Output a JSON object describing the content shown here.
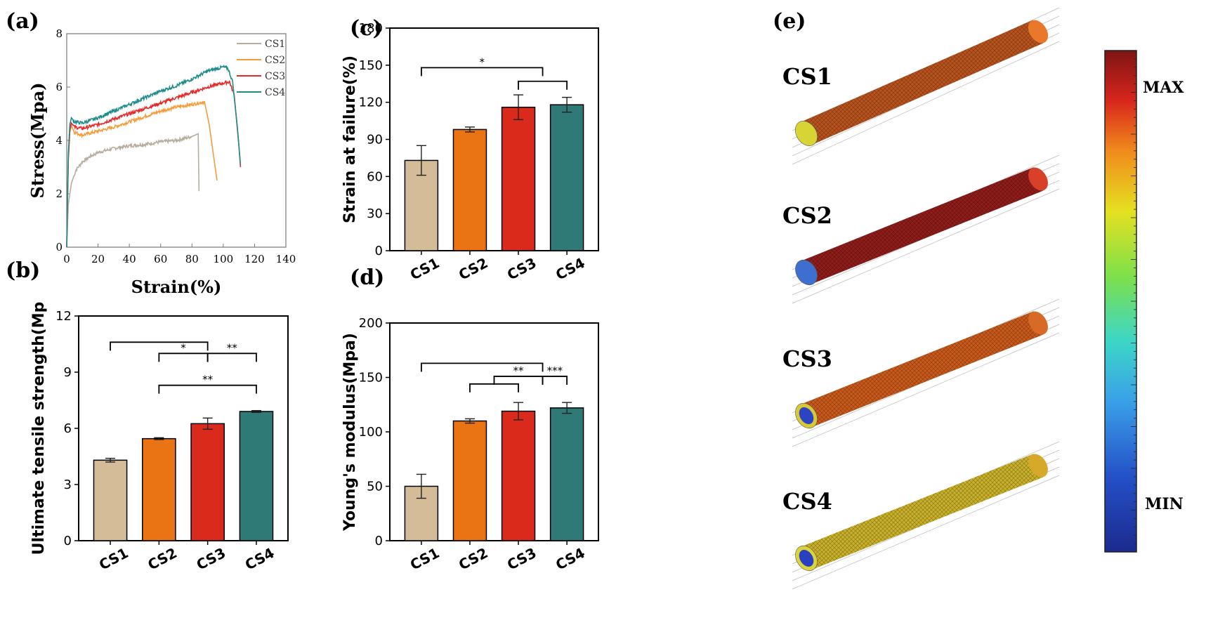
{
  "panels": {
    "a": "(a)",
    "b": "(b)",
    "c": "(c)",
    "d": "(d)",
    "e": "(e)"
  },
  "colors": {
    "CS1": "#d5bc98",
    "CS2": "#ea7414",
    "CS3": "#d92a1c",
    "CS4": "#2f7a76",
    "line_CS1": "#b7ad9f",
    "line_CS2": "#f59c3a",
    "line_CS3": "#e8292a",
    "line_CS4": "#1f8e8a"
  },
  "panel_e": {
    "models": [
      "CS1",
      "CS2",
      "CS3",
      "CS4"
    ],
    "colorbar": {
      "max_label": "MAX",
      "min_label": "MIN"
    }
  },
  "chart_data": [
    {
      "id": "a",
      "type": "line",
      "xlabel": "Strain(%)",
      "ylabel": "Stress(Mpa)",
      "xlim": [
        0,
        140
      ],
      "ylim": [
        0,
        8
      ],
      "xticks": [
        "0",
        "20",
        "40",
        "60",
        "80",
        "100",
        "120",
        "140"
      ],
      "yticks": [
        "0",
        "2",
        "4",
        "6",
        "8"
      ],
      "legend": "top-right",
      "series": [
        {
          "name": "CS1",
          "x": [
            0,
            1,
            3,
            6,
            10,
            15,
            20,
            30,
            40,
            50,
            60,
            70,
            80,
            84,
            84.5
          ],
          "y": [
            0,
            1.6,
            2.4,
            2.9,
            3.2,
            3.4,
            3.55,
            3.7,
            3.8,
            3.85,
            3.95,
            4.0,
            4.15,
            4.25,
            2.1
          ]
        },
        {
          "name": "CS2",
          "x": [
            0,
            1,
            2,
            3,
            5,
            10,
            20,
            30,
            40,
            50,
            60,
            70,
            80,
            88,
            91,
            96
          ],
          "y": [
            0,
            3.2,
            4.3,
            4.55,
            4.3,
            4.2,
            4.35,
            4.5,
            4.7,
            4.9,
            5.1,
            5.25,
            5.35,
            5.45,
            4.6,
            2.5
          ]
        },
        {
          "name": "CS3",
          "x": [
            0,
            1,
            2,
            3,
            5,
            10,
            20,
            30,
            40,
            50,
            60,
            70,
            80,
            90,
            100,
            104,
            107,
            110,
            111
          ],
          "y": [
            0,
            3.3,
            4.4,
            4.65,
            4.5,
            4.45,
            4.6,
            4.8,
            5.0,
            5.2,
            5.4,
            5.6,
            5.8,
            6.0,
            6.15,
            6.2,
            5.7,
            3.8,
            3.0
          ]
        },
        {
          "name": "CS4",
          "x": [
            0,
            1,
            2,
            3,
            5,
            10,
            20,
            30,
            40,
            50,
            60,
            70,
            80,
            90,
            100,
            103,
            106,
            109,
            111
          ],
          "y": [
            0,
            3.5,
            4.6,
            4.85,
            4.7,
            4.65,
            4.85,
            5.1,
            5.35,
            5.6,
            5.85,
            6.05,
            6.3,
            6.6,
            6.75,
            6.7,
            6.2,
            4.5,
            3.1
          ]
        }
      ]
    },
    {
      "id": "b",
      "type": "bar",
      "ylabel": "Ultimate tensile strength(Mp",
      "categories": [
        "CS1",
        "CS2",
        "CS3",
        "CS4"
      ],
      "values": [
        4.3,
        5.45,
        6.25,
        6.9
      ],
      "errors": [
        0.1,
        0.05,
        0.3,
        0.05
      ],
      "ylim": [
        0,
        12
      ],
      "yticks": [
        "0",
        "3",
        "6",
        "9",
        "12"
      ],
      "significance": [
        {
          "from": 0,
          "to": 2,
          "label": "",
          "level": 10.6
        },
        {
          "from": 1,
          "to": 2,
          "label": "*",
          "level": 10.0
        },
        {
          "from": 2,
          "to": 3,
          "label": "**",
          "level": 10.0
        },
        {
          "from": 1,
          "to": 3,
          "label": "**",
          "level": 8.3
        }
      ]
    },
    {
      "id": "c",
      "type": "bar",
      "ylabel": "Strain at failure(%)",
      "categories": [
        "CS1",
        "CS2",
        "CS3",
        "CS4"
      ],
      "values": [
        73,
        98,
        116,
        118
      ],
      "errors": [
        12,
        2,
        10,
        6
      ],
      "ylim": [
        0,
        180
      ],
      "yticks": [
        "0",
        "30",
        "60",
        "90",
        "120",
        "150",
        "180"
      ],
      "significance": [
        {
          "from": 0,
          "to": 2.5,
          "label": "*",
          "level": 148
        },
        {
          "from": 2,
          "to": 3,
          "label": "",
          "level": 137
        }
      ]
    },
    {
      "id": "d",
      "type": "bar",
      "ylabel": "Young's modulus(Mpa)",
      "categories": [
        "CS1",
        "CS2",
        "CS3",
        "CS4"
      ],
      "values": [
        50,
        110,
        119,
        122
      ],
      "errors": [
        11,
        2,
        8,
        5
      ],
      "ylim": [
        0,
        200
      ],
      "yticks": [
        "0",
        "50",
        "100",
        "150",
        "200"
      ],
      "significance": [
        {
          "from": 0,
          "to": 2.5,
          "label": "",
          "level": 163
        },
        {
          "from": 1,
          "to": 2,
          "label": "",
          "level": 144
        },
        {
          "from": 1.5,
          "to": 2.5,
          "label": "**",
          "level": 151
        },
        {
          "from": 2.5,
          "to": 3,
          "label": "***",
          "level": 151
        }
      ]
    }
  ]
}
